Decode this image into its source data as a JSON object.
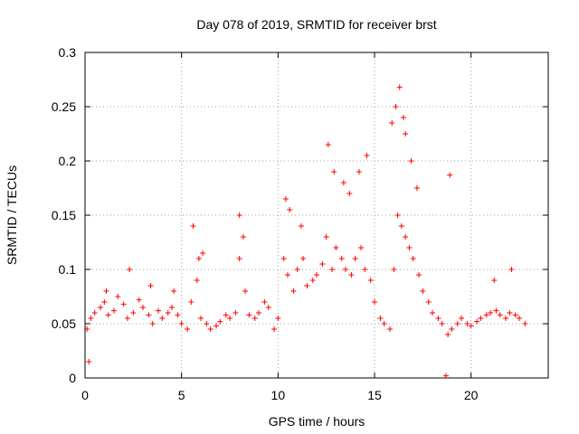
{
  "chart_data": {
    "type": "scatter",
    "title": "Day 078 of 2019, SRMTID for receiver brst",
    "xlabel": "GPS time / hours",
    "ylabel": "SRMTID / TECUs",
    "xlim": [
      0,
      24
    ],
    "ylim": [
      0,
      0.3
    ],
    "x_ticks": [
      0,
      5,
      10,
      15,
      20
    ],
    "x_tick_labels": [
      "0",
      "5",
      "10",
      "15",
      "20"
    ],
    "y_ticks": [
      0,
      0.05,
      0.1,
      0.15,
      0.2,
      0.25,
      0.3
    ],
    "y_tick_labels": [
      "0",
      "0.05",
      "0.1",
      "0.15",
      "0.2",
      "0.25",
      "0.3"
    ],
    "grid": true,
    "marker": "+",
    "colors": {
      "points": "#ff0000",
      "grid": "#a0a0a0",
      "axis": "#000000"
    },
    "series": [
      {
        "name": "SRMTID",
        "x": [
          0.1,
          0.3,
          0.5,
          0.8,
          1.0,
          1.2,
          1.5,
          1.7,
          2.0,
          2.2,
          2.5,
          2.8,
          3.0,
          3.3,
          3.5,
          3.8,
          4.0,
          4.3,
          4.5,
          4.8,
          5.0,
          5.3,
          5.5,
          5.8,
          6.0,
          6.3,
          6.5,
          6.8,
          7.0,
          7.3,
          7.5,
          7.8,
          8.0,
          8.3,
          8.5,
          8.8,
          9.0,
          9.3,
          9.5,
          9.8,
          10.0,
          10.3,
          10.5,
          10.8,
          11.0,
          11.3,
          11.5,
          11.8,
          12.0,
          12.3,
          12.5,
          12.8,
          13.0,
          13.3,
          13.5,
          13.8,
          14.0,
          14.3,
          14.5,
          14.8,
          15.0,
          15.3,
          15.5,
          15.8,
          16.0,
          16.2,
          16.4,
          16.6,
          16.8,
          17.0,
          17.3,
          17.5,
          17.8,
          18.0,
          18.3,
          18.5,
          18.8,
          19.0,
          19.3,
          19.5,
          19.8,
          20.0,
          20.3,
          20.5,
          20.8,
          21.0,
          21.3,
          21.5,
          21.8,
          22.0,
          22.3,
          22.5,
          22.8,
          0.2,
          1.1,
          2.3,
          3.4,
          4.6,
          5.6,
          5.9,
          6.1,
          8.0,
          8.2,
          10.4,
          10.6,
          11.2,
          12.6,
          12.9,
          13.4,
          13.7,
          14.2,
          14.6,
          15.9,
          16.1,
          16.3,
          16.5,
          16.6,
          16.9,
          17.2,
          18.7,
          18.9,
          21.2,
          22.1
        ],
        "y": [
          0.045,
          0.055,
          0.06,
          0.065,
          0.07,
          0.058,
          0.062,
          0.075,
          0.068,
          0.055,
          0.06,
          0.072,
          0.065,
          0.058,
          0.05,
          0.062,
          0.055,
          0.06,
          0.065,
          0.058,
          0.05,
          0.045,
          0.07,
          0.09,
          0.055,
          0.05,
          0.045,
          0.048,
          0.052,
          0.058,
          0.055,
          0.06,
          0.11,
          0.08,
          0.058,
          0.055,
          0.06,
          0.07,
          0.065,
          0.045,
          0.055,
          0.11,
          0.095,
          0.08,
          0.1,
          0.11,
          0.085,
          0.09,
          0.095,
          0.105,
          0.13,
          0.1,
          0.12,
          0.11,
          0.1,
          0.095,
          0.11,
          0.12,
          0.1,
          0.09,
          0.07,
          0.055,
          0.05,
          0.045,
          0.1,
          0.15,
          0.14,
          0.13,
          0.12,
          0.11,
          0.095,
          0.08,
          0.07,
          0.06,
          0.055,
          0.05,
          0.04,
          0.045,
          0.05,
          0.055,
          0.05,
          0.048,
          0.052,
          0.055,
          0.058,
          0.06,
          0.062,
          0.058,
          0.055,
          0.06,
          0.058,
          0.055,
          0.05,
          0.015,
          0.08,
          0.1,
          0.085,
          0.08,
          0.14,
          0.11,
          0.115,
          0.15,
          0.13,
          0.165,
          0.155,
          0.14,
          0.215,
          0.19,
          0.18,
          0.17,
          0.19,
          0.205,
          0.235,
          0.25,
          0.268,
          0.24,
          0.225,
          0.2,
          0.175,
          0.002,
          0.187,
          0.09,
          0.1
        ]
      }
    ]
  }
}
